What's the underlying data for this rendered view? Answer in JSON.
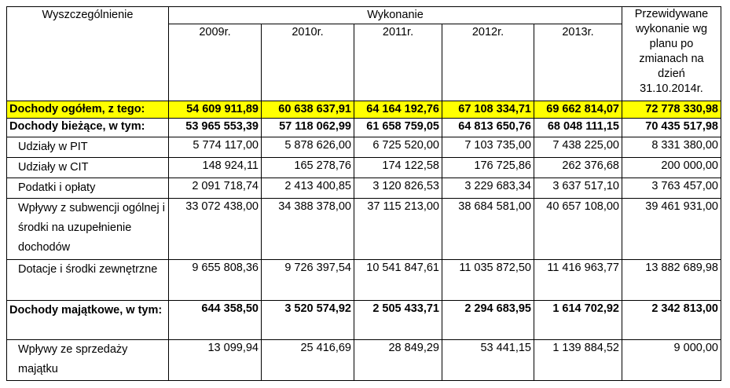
{
  "header": {
    "first_col": "Wyszczególnienie",
    "group": "Wykonanie",
    "years": [
      "2009r.",
      "2010r.",
      "2011r.",
      "2012r.",
      "2013r."
    ],
    "last_col": "Przewidywane wykonanie wg planu po zmianach na dzień 31.10.2014r."
  },
  "rows": [
    {
      "label": "Dochody ogółem, z tego:",
      "values": [
        "54 609 911,89",
        "60 638 637,91",
        "64 164 192,76",
        "67 108 334,71",
        "69 662 814,07",
        "72 778 330,98"
      ]
    },
    {
      "label": "Dochody bieżące, w tym:",
      "values": [
        "53 965 553,39",
        "57 118 062,99",
        "61 658 759,05",
        "64 813 650,76",
        "68 048 111,15",
        "70 435 517,98"
      ]
    },
    {
      "label": "Udziały w PIT",
      "values": [
        "5 774 117,00",
        "5 878 626,00",
        "6 725 520,00",
        "7 103 735,00",
        "7 438 225,00",
        "8 331 380,00"
      ]
    },
    {
      "label": "Udziały w CIT",
      "values": [
        "148 924,11",
        "165 278,76",
        "174 122,58",
        "176 725,86",
        "262 376,68",
        "200 000,00"
      ]
    },
    {
      "label": "Podatki i opłaty",
      "values": [
        "2 091 718,74",
        "2 413 400,85",
        "3 120 826,53",
        "3 229 683,34",
        "3 637 517,10",
        "3 763 457,00"
      ]
    },
    {
      "label": "Wpływy z subwencji ogólnej i środki na uzupełnienie dochodów",
      "values": [
        "33 072 438,00",
        "34 388 378,00",
        "37 115 213,00",
        "38 684 581,00",
        "40 657 108,00",
        "39 461 931,00"
      ]
    },
    {
      "label": "Dotacje i środki zewnętrzne",
      "values": [
        "9 655 808,36",
        "9 726 397,54",
        "10 541 847,61",
        "11 035 872,50",
        "11 416 963,77",
        "13 882 689,98"
      ]
    },
    {
      "label": "Dochody majątkowe, w tym:",
      "values": [
        "644 358,50",
        "3 520 574,92",
        "2 505 433,71",
        "2 294 683,95",
        "1 614 702,92",
        "2 342 813,00"
      ]
    },
    {
      "label": "Wpływy ze sprzedaży majątku",
      "values": [
        "13 099,94",
        "25 416,69",
        "28 849,29",
        "53 441,15",
        "1 139 884,52",
        "9 000,00"
      ]
    }
  ]
}
